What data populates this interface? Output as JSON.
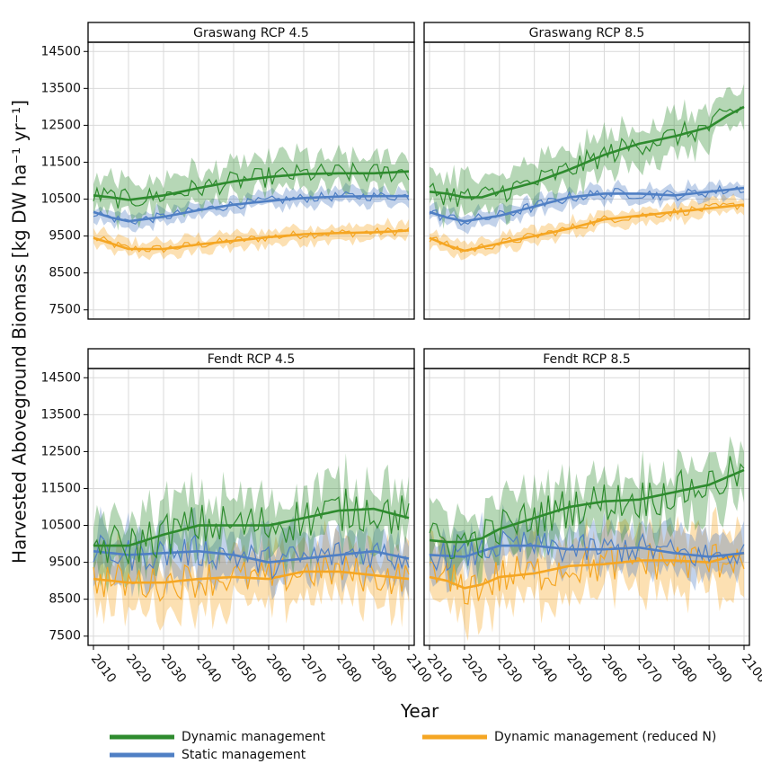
{
  "chart_data": {
    "type": "line",
    "xlabel": "Year",
    "ylabel": "Harvested Aboveground Biomass [kg DW ha⁻¹ yr⁻¹]",
    "xlim": [
      2010,
      2100
    ],
    "ylim": [
      7250,
      14750
    ],
    "x_ticks": [
      "2010",
      "2020",
      "2030",
      "2040",
      "2050",
      "2060",
      "2070",
      "2080",
      "2090",
      "2100"
    ],
    "y_ticks": [
      "7500",
      "8500",
      "9500",
      "10500",
      "11500",
      "12500",
      "13500",
      "14500"
    ],
    "grid": true,
    "legend_position": "bottom",
    "legend": [
      {
        "key": "dyn",
        "label": "Dynamic management",
        "color": "#2e8b2e"
      },
      {
        "key": "dynN",
        "label": "Dynamic management (reduced N)",
        "color": "#f5a623"
      },
      {
        "key": "stat",
        "label": "Static management",
        "color": "#4f7fc4"
      }
    ],
    "panels": [
      {
        "title": "Graswang RCP 4.5",
        "series": [
          {
            "key": "dyn",
            "smooth": {
              "x": [
                2010,
                2015,
                2020,
                2030,
                2040,
                2050,
                2060,
                2070,
                2080,
                2090,
                2100
              ],
              "y": [
                10600,
                10550,
                10480,
                10600,
                10800,
                10980,
                11100,
                11180,
                11200,
                11200,
                11250
              ]
            },
            "band": 450,
            "noise": 280
          },
          {
            "key": "stat",
            "smooth": {
              "x": [
                2010,
                2015,
                2020,
                2030,
                2040,
                2050,
                2060,
                2070,
                2080,
                2090,
                2100
              ],
              "y": [
                10150,
                10000,
                9900,
                10020,
                10200,
                10350,
                10450,
                10530,
                10570,
                10580,
                10580
              ]
            },
            "band": 200,
            "noise": 130
          },
          {
            "key": "dynN",
            "smooth": {
              "x": [
                2010,
                2015,
                2020,
                2030,
                2040,
                2050,
                2060,
                2070,
                2080,
                2090,
                2100
              ],
              "y": [
                9450,
                9300,
                9150,
                9150,
                9270,
                9370,
                9470,
                9550,
                9580,
                9600,
                9650
              ]
            },
            "band": 200,
            "noise": 120
          }
        ]
      },
      {
        "title": "Graswang RCP 8.5",
        "series": [
          {
            "key": "dyn",
            "smooth": {
              "x": [
                2010,
                2015,
                2020,
                2025,
                2030,
                2040,
                2050,
                2060,
                2070,
                2080,
                2090,
                2095,
                2100
              ],
              "y": [
                10700,
                10650,
                10550,
                10550,
                10700,
                10950,
                11300,
                11700,
                12000,
                12200,
                12450,
                12750,
                13000
              ]
            },
            "band": 500,
            "noise": 320
          },
          {
            "key": "stat",
            "smooth": {
              "x": [
                2010,
                2015,
                2020,
                2030,
                2040,
                2050,
                2060,
                2070,
                2080,
                2090,
                2100
              ],
              "y": [
                10150,
                10000,
                9900,
                10050,
                10300,
                10550,
                10650,
                10650,
                10600,
                10700,
                10800
              ]
            },
            "band": 200,
            "noise": 150
          },
          {
            "key": "dynN",
            "smooth": {
              "x": [
                2010,
                2015,
                2020,
                2030,
                2040,
                2050,
                2060,
                2070,
                2080,
                2090,
                2100
              ],
              "y": [
                9450,
                9250,
                9100,
                9300,
                9500,
                9700,
                9950,
                10050,
                10150,
                10250,
                10350
              ]
            },
            "band": 200,
            "noise": 120
          }
        ]
      },
      {
        "title": "Fendt RCP 4.5",
        "series": [
          {
            "key": "dyn",
            "smooth": {
              "x": [
                2010,
                2020,
                2030,
                2040,
                2050,
                2060,
                2070,
                2080,
                2090,
                2100
              ],
              "y": [
                9950,
                9950,
                10250,
                10500,
                10500,
                10500,
                10700,
                10900,
                10950,
                10700
              ]
            },
            "band": 700,
            "noise": 600
          },
          {
            "key": "stat",
            "smooth": {
              "x": [
                2010,
                2020,
                2030,
                2040,
                2050,
                2060,
                2070,
                2080,
                2090,
                2100
              ],
              "y": [
                9800,
                9700,
                9750,
                9800,
                9700,
                9500,
                9600,
                9700,
                9800,
                9600
              ]
            },
            "band": 600,
            "noise": 450
          },
          {
            "key": "dynN",
            "smooth": {
              "x": [
                2010,
                2020,
                2030,
                2040,
                2050,
                2060,
                2070,
                2080,
                2090,
                2100
              ],
              "y": [
                9050,
                8950,
                8950,
                9050,
                9100,
                9050,
                9250,
                9250,
                9150,
                9050
              ]
            },
            "band": 700,
            "noise": 500
          }
        ]
      },
      {
        "title": "Fendt RCP 8.5",
        "series": [
          {
            "key": "dyn",
            "smooth": {
              "x": [
                2010,
                2015,
                2020,
                2025,
                2030,
                2040,
                2050,
                2060,
                2070,
                2080,
                2090,
                2100
              ],
              "y": [
                10100,
                10050,
                10050,
                10150,
                10400,
                10700,
                11000,
                11150,
                11200,
                11400,
                11600,
                12000
              ]
            },
            "band": 700,
            "noise": 550
          },
          {
            "key": "stat",
            "smooth": {
              "x": [
                2010,
                2020,
                2030,
                2040,
                2050,
                2060,
                2070,
                2080,
                2090,
                2100
              ],
              "y": [
                9700,
                9650,
                9950,
                9950,
                9850,
                9850,
                9900,
                9750,
                9650,
                9750
              ]
            },
            "band": 550,
            "noise": 400
          },
          {
            "key": "dynN",
            "smooth": {
              "x": [
                2010,
                2015,
                2020,
                2025,
                2030,
                2040,
                2050,
                2060,
                2070,
                2080,
                2090,
                2100
              ],
              "y": [
                9100,
                9000,
                8800,
                8900,
                9100,
                9200,
                9400,
                9450,
                9550,
                9550,
                9500,
                9750
              ]
            },
            "band": 750,
            "noise": 550
          }
        ]
      }
    ]
  }
}
